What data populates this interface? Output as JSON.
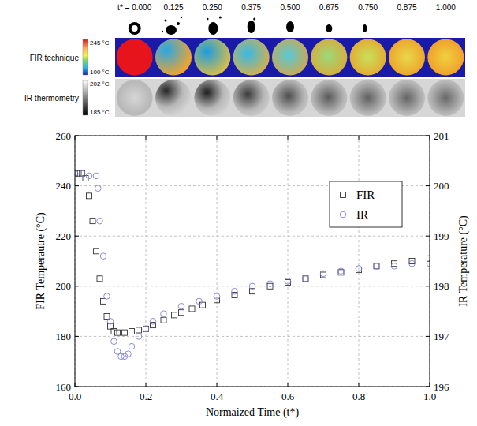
{
  "image_strip": {
    "times": [
      "t* = 0.000",
      "0.125",
      "0.250",
      "0.375",
      "0.500",
      "0.675",
      "0.750",
      "0.875",
      "1.000"
    ],
    "rows": [
      {
        "label": "FIR technique",
        "scale_max_label": "245 °C",
        "scale_min_label": "100 °C"
      },
      {
        "label": "IR thermometry",
        "scale_max_label": "202 °C",
        "scale_min_label": "185 °C"
      }
    ]
  },
  "chart_data": {
    "type": "scatter",
    "xlabel": "Normaized Time (t*)",
    "ylabel": "FIR Temperautre (°C)",
    "y2label": "IR Temperature (°C)",
    "xlim": [
      0,
      1
    ],
    "xticks": [
      {
        "value": 0,
        "label": "0.0"
      },
      0.2,
      0.4,
      0.6,
      0.8,
      {
        "value": 1,
        "label": "1.0"
      }
    ],
    "ylim": [
      160,
      260
    ],
    "yticks": [
      160,
      180,
      200,
      220,
      240,
      260
    ],
    "y2lim": [
      196,
      201
    ],
    "y2ticks": [
      196,
      197,
      198,
      199,
      200,
      201
    ],
    "grid": true,
    "legend": "upper right",
    "series": [
      {
        "name": "FIR",
        "color": "#333333",
        "marker": "square",
        "x": [
          0,
          0.01,
          0.02,
          0.03,
          0.04,
          0.05,
          0.06,
          0.07,
          0.08,
          0.09,
          0.1,
          0.11,
          0.12,
          0.14,
          0.16,
          0.18,
          0.2,
          0.22,
          0.25,
          0.28,
          0.3,
          0.33,
          0.36,
          0.4,
          0.45,
          0.5,
          0.55,
          0.6,
          0.65,
          0.7,
          0.75,
          0.8,
          0.85,
          0.9,
          0.95,
          1.0
        ],
        "values": [
          245,
          245,
          245,
          243,
          236,
          226,
          214,
          203,
          194,
          188,
          184,
          182,
          181.5,
          181.5,
          182,
          182.5,
          183,
          184.5,
          186.5,
          188.5,
          189.5,
          191,
          192.5,
          194.5,
          196.5,
          198,
          200,
          201.5,
          203,
          204.5,
          205.5,
          206.5,
          208,
          209,
          210,
          211
        ]
      },
      {
        "name": "IR",
        "color": "#7f7fe0",
        "marker": "circle",
        "axis": "y2",
        "x": [
          0,
          0.02,
          0.04,
          0.06,
          0.065,
          0.07,
          0.08,
          0.09,
          0.1,
          0.11,
          0.12,
          0.13,
          0.14,
          0.15,
          0.16,
          0.18,
          0.2,
          0.22,
          0.25,
          0.3,
          0.35,
          0.4,
          0.45,
          0.5,
          0.55,
          0.6,
          0.65,
          0.7,
          0.75,
          0.8,
          0.85,
          0.9,
          0.95,
          1.0
        ],
        "values": [
          200.25,
          200.25,
          200.2,
          200.2,
          199.95,
          199.3,
          198.6,
          197.8,
          197.3,
          196.9,
          196.7,
          196.6,
          196.6,
          196.65,
          196.8,
          197.0,
          197.15,
          197.3,
          197.45,
          197.6,
          197.7,
          197.8,
          197.9,
          198.0,
          198.05,
          198.1,
          198.15,
          198.25,
          198.3,
          198.35,
          198.4,
          198.4,
          198.45,
          198.45
        ]
      }
    ]
  }
}
